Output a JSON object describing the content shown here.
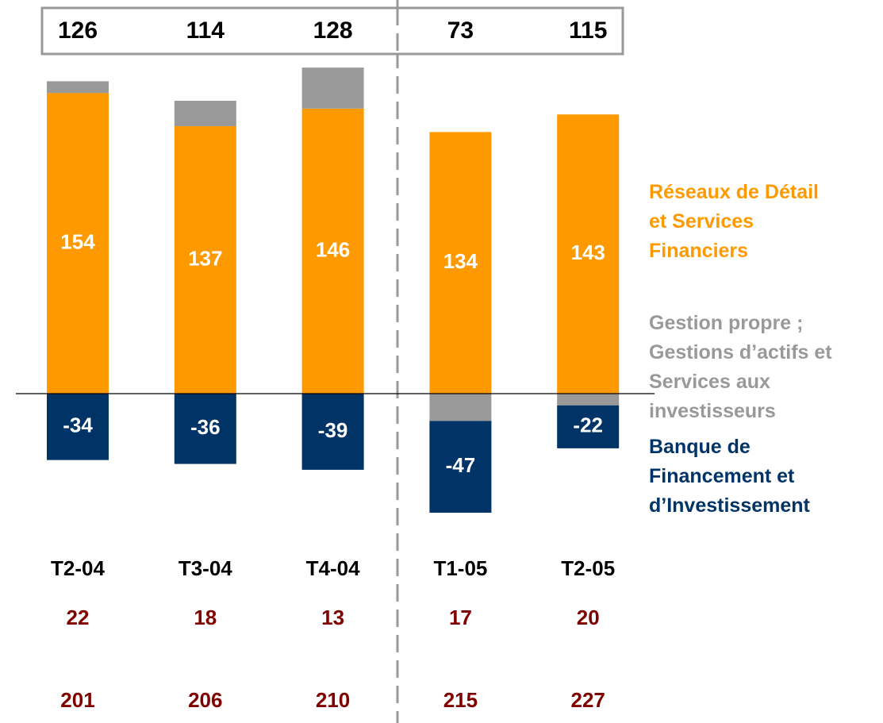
{
  "chart_data": {
    "type": "stacked_bar",
    "categories": [
      "T2-04",
      "T3-04",
      "T4-04",
      "T1-05",
      "T2-05"
    ],
    "totals": [
      126,
      114,
      128,
      73,
      115
    ],
    "series": [
      {
        "name": "Réseaux de Détail\net Services\nFinanciers",
        "color": "#ff9900",
        "values": [
          154,
          137,
          146,
          134,
          143
        ],
        "labels": true
      },
      {
        "name": "Gestion propre ;\nGestions d’actifs et\nServices aux\ninvestisseurs",
        "color": "#999999",
        "values": [
          6,
          13,
          21,
          -14,
          -6
        ],
        "labels": false
      },
      {
        "name": "Banque de\nFinancement et\nd’Investissement",
        "color": "#003366",
        "values": [
          -34,
          -36,
          -39,
          -47,
          -22
        ],
        "labels": true
      }
    ],
    "extra_rows": [
      [
        22,
        18,
        13,
        17,
        20
      ],
      [
        201,
        206,
        210,
        215,
        227
      ]
    ],
    "extra_row_color": "#800000"
  }
}
